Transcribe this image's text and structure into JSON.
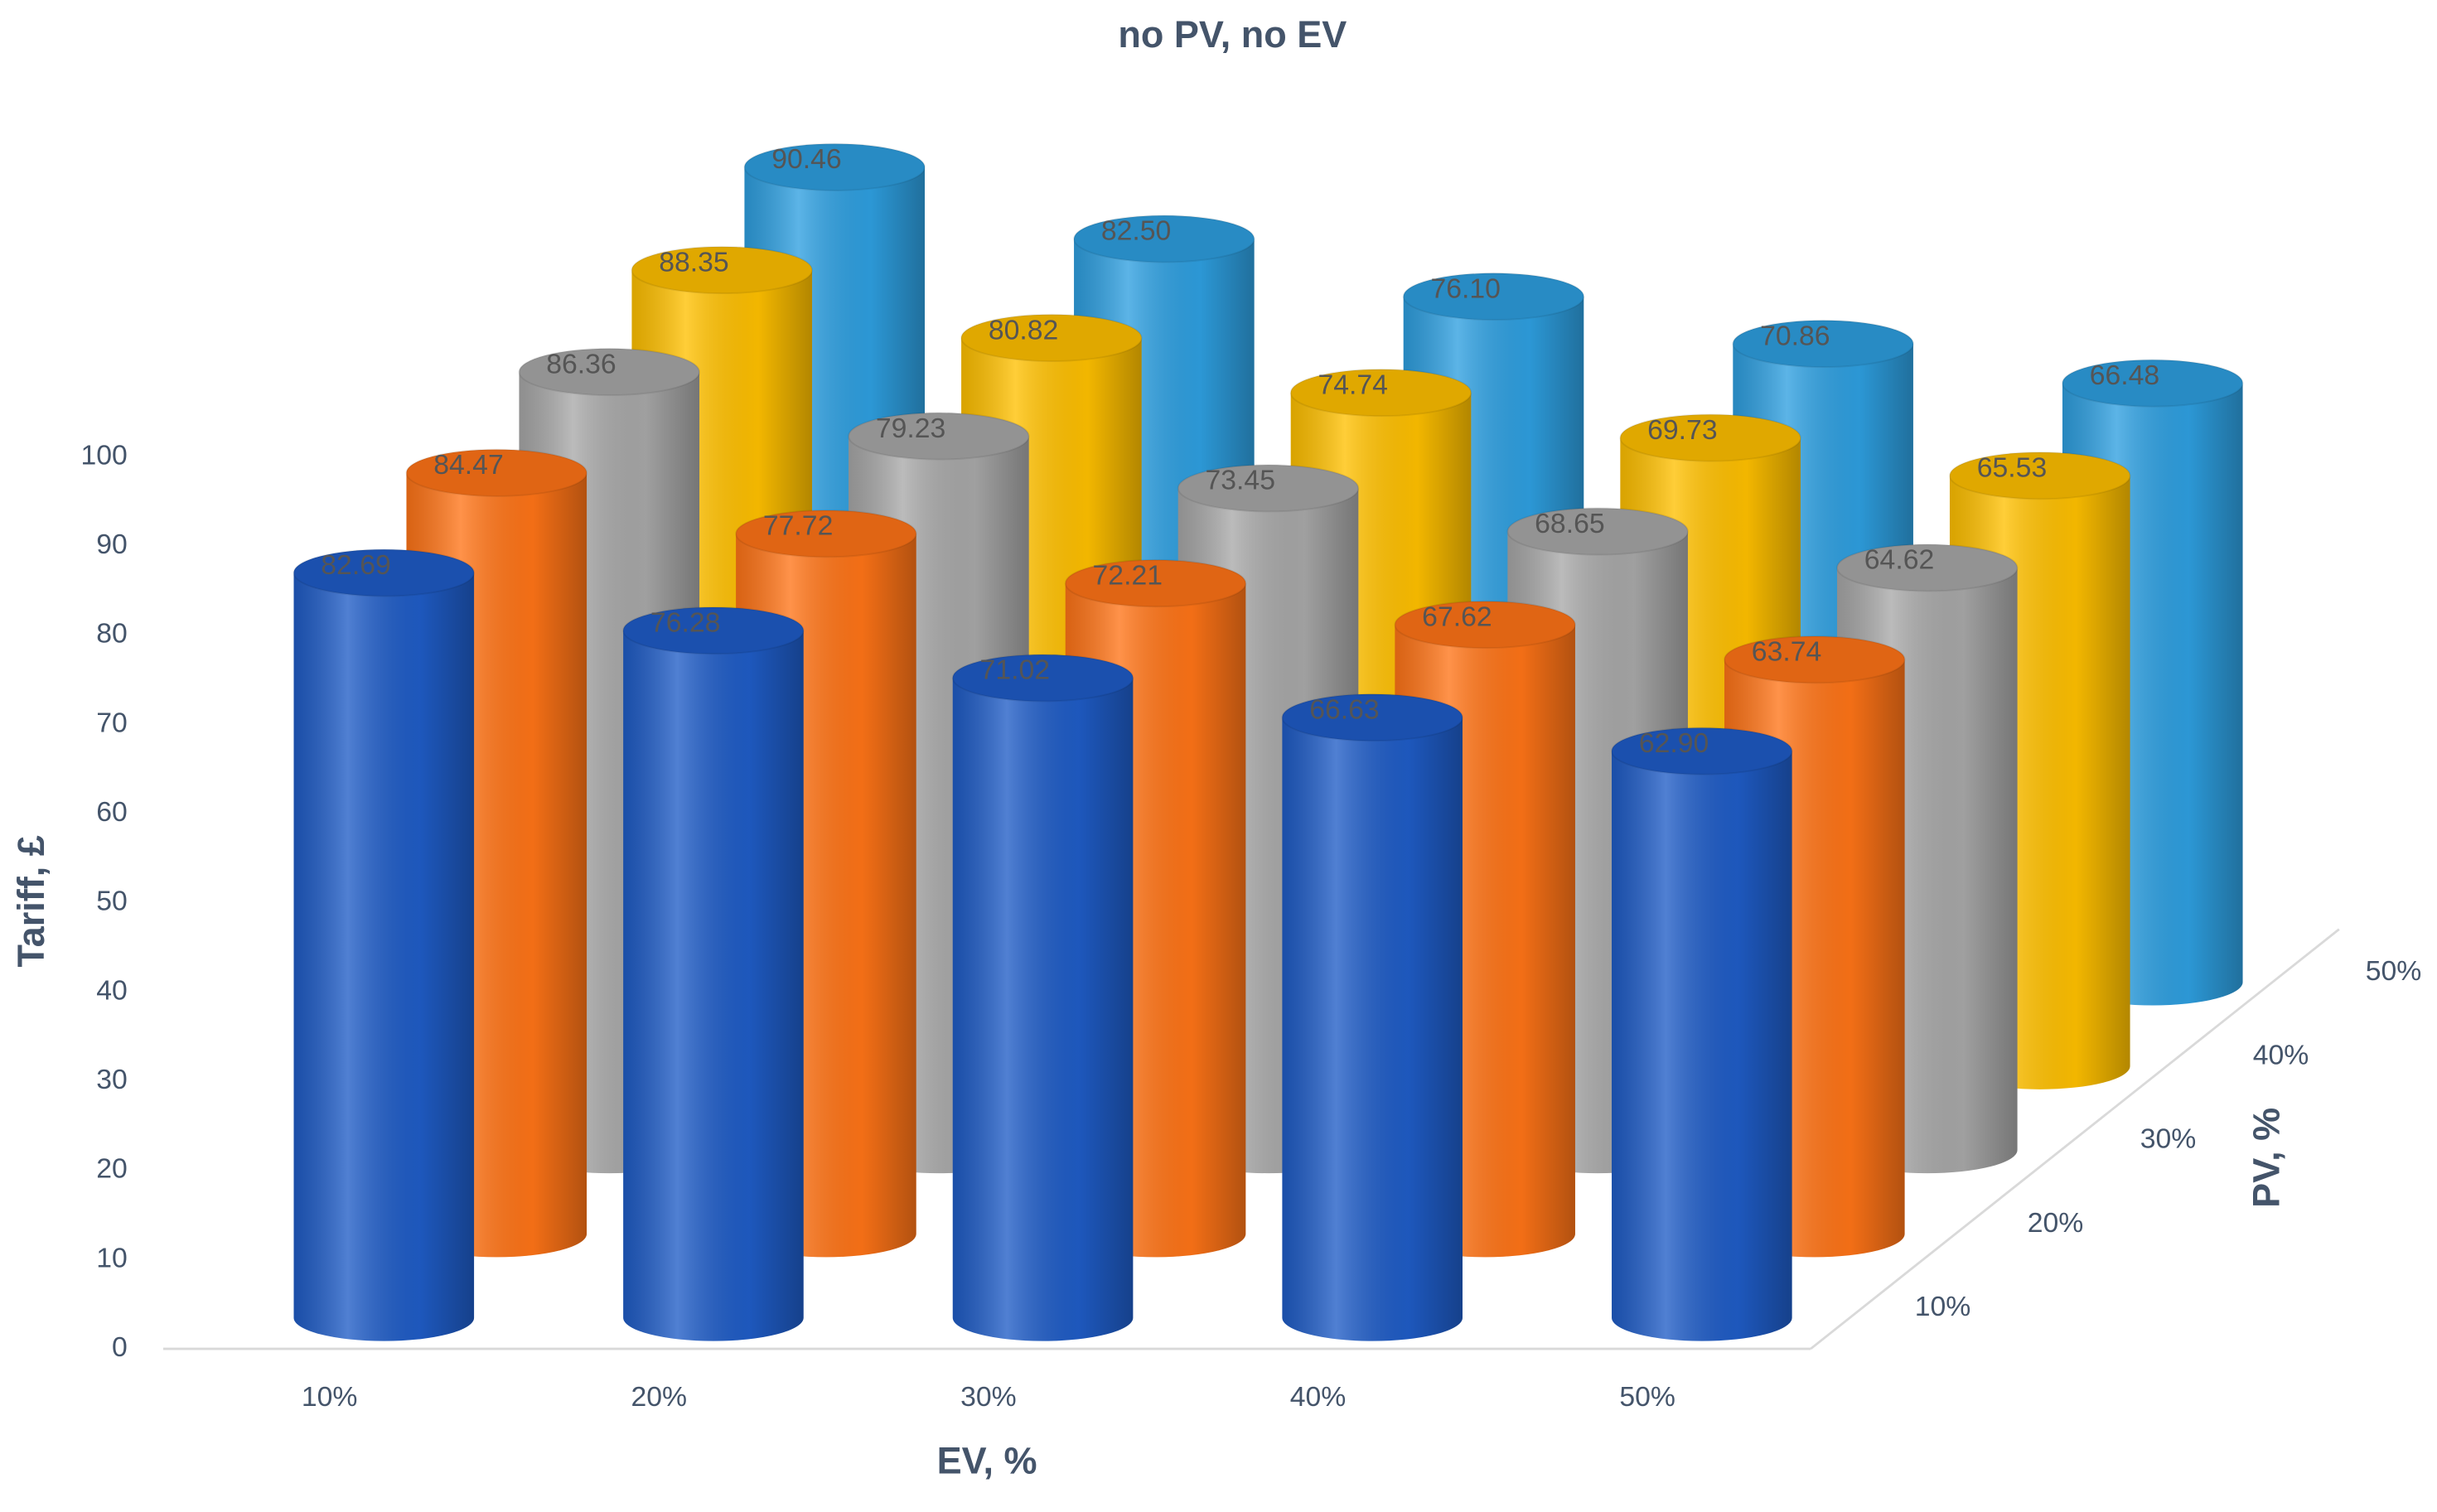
{
  "chart_data": {
    "type": "cylinder3d",
    "title": "no PV, no EV",
    "x_label": "EV, %",
    "y_label": "Tariff, £",
    "z_label": "PV, %",
    "categories": [
      "10%",
      "20%",
      "30%",
      "40%",
      "50%"
    ],
    "ylim": [
      0,
      100
    ],
    "yticks": [
      0,
      10,
      20,
      30,
      40,
      50,
      60,
      70,
      80,
      90,
      100
    ],
    "grid": false,
    "series": [
      {
        "name": "10%",
        "color": "#1f5cc6",
        "values": [
          82.69,
          76.28,
          71.02,
          66.63,
          62.9
        ],
        "value_labels": [
          "82.69",
          "76.28",
          "71.02",
          "66.63",
          "62.90"
        ]
      },
      {
        "name": "20%",
        "color": "#ff7417",
        "values": [
          84.47,
          77.72,
          72.21,
          67.62,
          63.74
        ],
        "value_labels": [
          "84.47",
          "77.72",
          "72.21",
          "67.62",
          "63.74"
        ]
      },
      {
        "name": "30%",
        "color": "#a8a8a8",
        "values": [
          86.36,
          79.23,
          73.45,
          68.65,
          64.62
        ],
        "value_labels": [
          "86.36",
          "79.23",
          "73.45",
          "68.65",
          "64.62"
        ]
      },
      {
        "name": "40%",
        "color": "#ffc000",
        "values": [
          88.35,
          80.82,
          74.74,
          69.73,
          65.53
        ],
        "value_labels": [
          "88.35",
          "80.82",
          "74.74",
          "69.73",
          "65.53"
        ]
      },
      {
        "name": "50%",
        "color": "#2e9fe0",
        "values": [
          90.46,
          82.5,
          76.1,
          70.86,
          66.48
        ],
        "value_labels": [
          "90.46",
          "82.50",
          "76.10",
          "70.86",
          "66.48"
        ]
      }
    ]
  }
}
